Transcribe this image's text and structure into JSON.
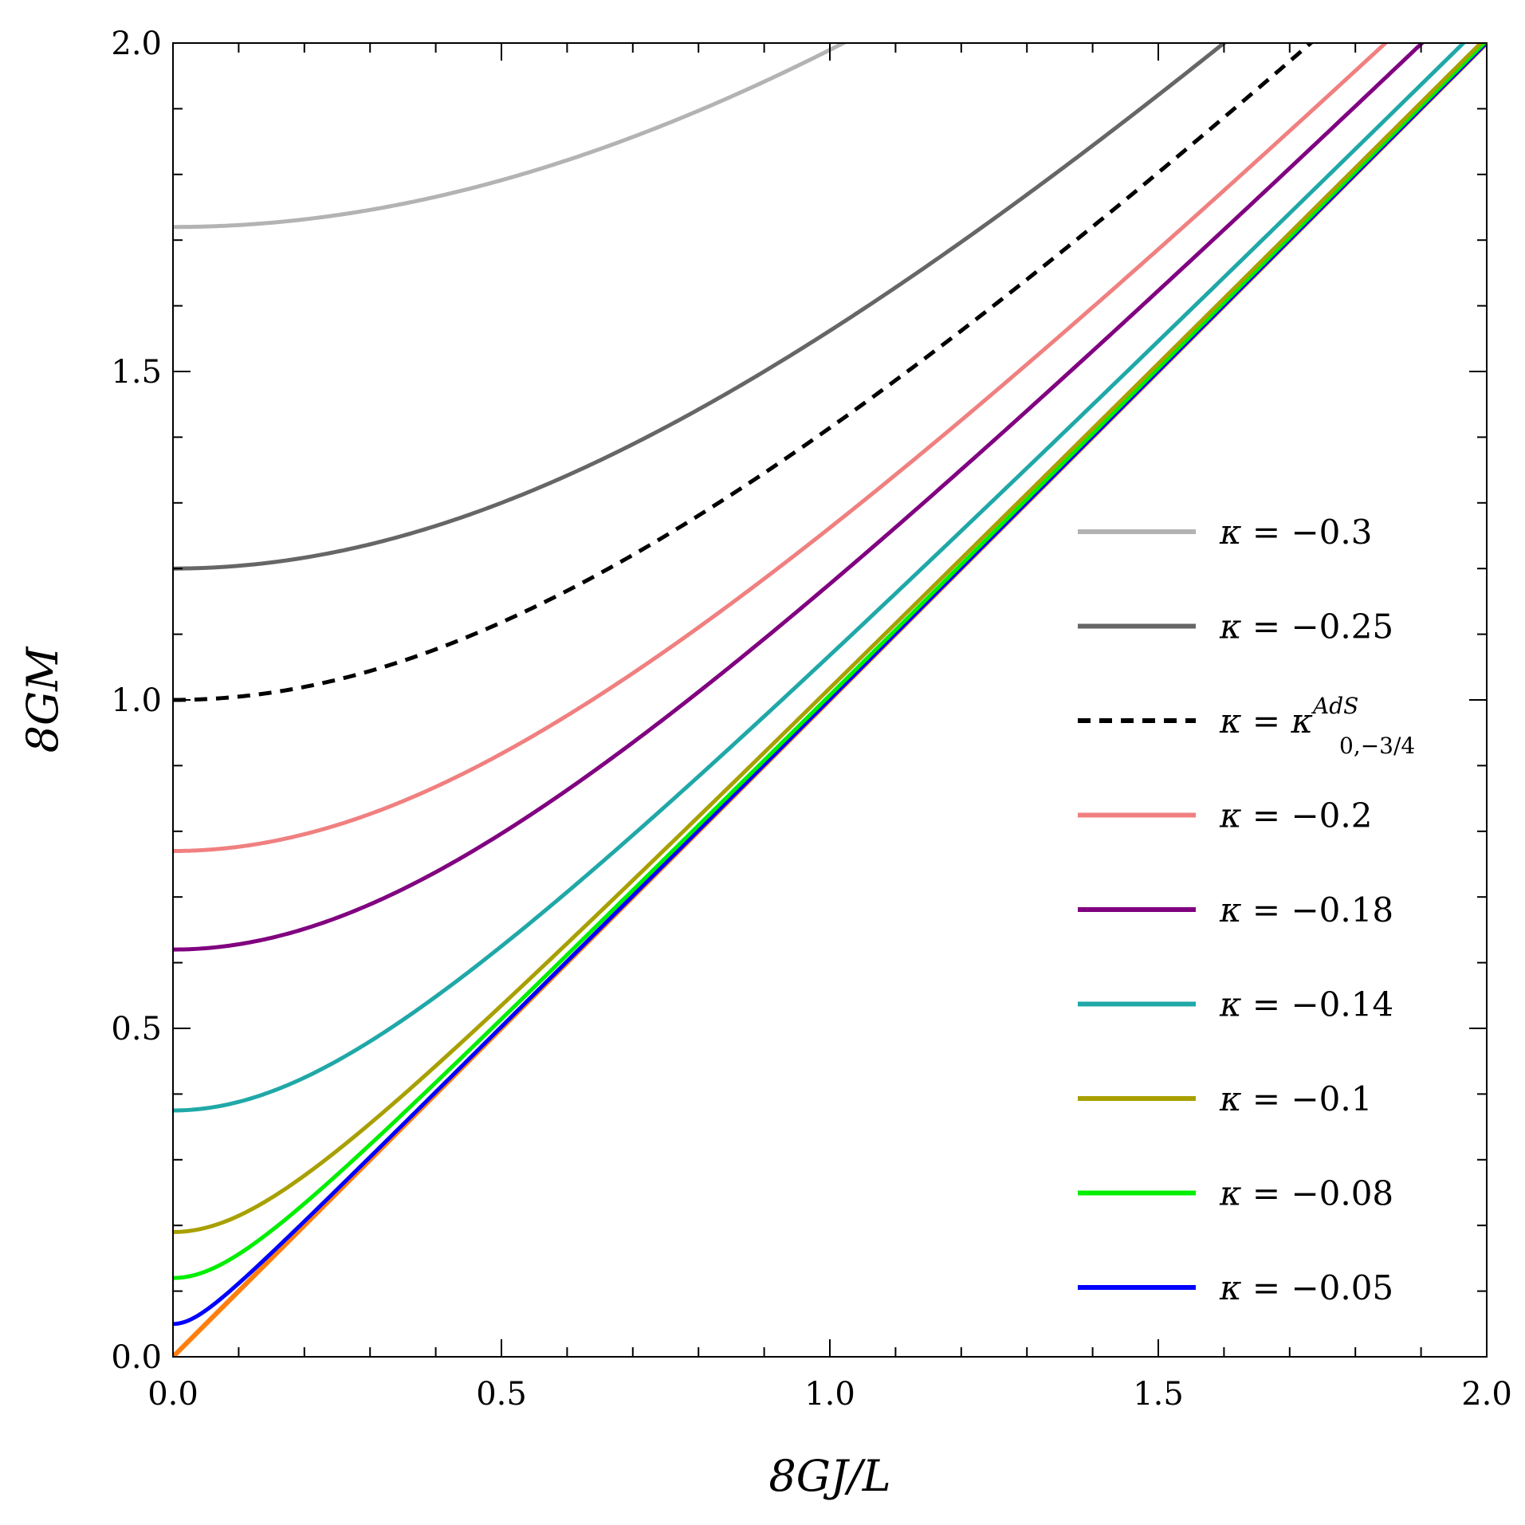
{
  "chart_data": {
    "type": "line",
    "xlabel": "8GJ/L",
    "ylabel": "8GM",
    "xlim": [
      0,
      2
    ],
    "ylim": [
      0,
      2
    ],
    "xticks": [
      "0.0",
      "0.5",
      "1.0",
      "1.5",
      "2.0"
    ],
    "yticks": [
      "0.0",
      "0.5",
      "1.0",
      "1.5",
      "2.0"
    ],
    "grid": false,
    "legend_position": "right",
    "series": [
      {
        "name": "κ = −0.3",
        "kappa_text": "κ",
        "eq_text": " = −0.3",
        "m0": 1.72,
        "color": "#b3b3b3",
        "dashed": false
      },
      {
        "name": "κ = −0.25",
        "kappa_text": "κ",
        "eq_text": " = −0.25",
        "m0": 1.2,
        "color": "#666666",
        "dashed": false
      },
      {
        "name": "κ = κ^AdS_{0,−3/4}",
        "kappa_text": "κ",
        "eq_text": " = κ",
        "sup_text": "AdS",
        "sub_text": "0,−3/4",
        "m0": 1.0,
        "color": "#000000",
        "dashed": true
      },
      {
        "name": "κ = −0.2",
        "kappa_text": "κ",
        "eq_text": " = −0.2",
        "m0": 0.77,
        "color": "#f08080",
        "dashed": false
      },
      {
        "name": "κ = −0.18",
        "kappa_text": "κ",
        "eq_text": " = −0.18",
        "m0": 0.62,
        "color": "#800080",
        "dashed": false
      },
      {
        "name": "κ = −0.14",
        "kappa_text": "κ",
        "eq_text": " = −0.14",
        "m0": 0.375,
        "color": "#20a8a8",
        "dashed": false
      },
      {
        "name": "κ = −0.1",
        "kappa_text": "κ",
        "eq_text": " = −0.1",
        "m0": 0.19,
        "color": "#a8a000",
        "dashed": false
      },
      {
        "name": "κ = −0.08",
        "kappa_text": "κ",
        "eq_text": " = −0.08",
        "m0": 0.12,
        "color": "#00ee00",
        "dashed": false
      },
      {
        "name": "κ = −0.05",
        "kappa_text": "κ",
        "eq_text": " = −0.05",
        "m0": 0.05,
        "color": "#0000ff",
        "dashed": false
      }
    ],
    "extremal_line": {
      "x": [
        0,
        2
      ],
      "y": [
        0,
        2
      ],
      "color": "#ff7f0e"
    }
  }
}
